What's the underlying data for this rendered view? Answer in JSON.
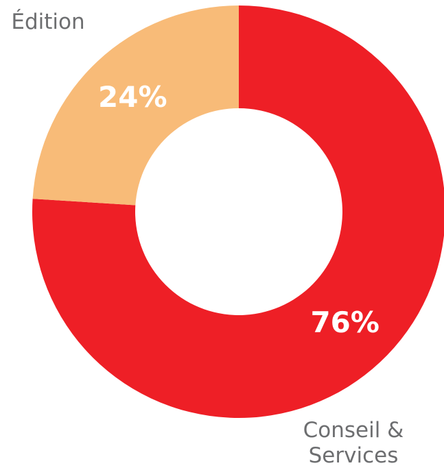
{
  "chart_data": {
    "type": "donut",
    "categories": [
      "Conseil & Services",
      "Édition"
    ],
    "values": [
      76,
      24
    ],
    "value_labels": [
      "76%",
      "24%"
    ],
    "colors": [
      "#ee1f26",
      "#f8bb78"
    ]
  }
}
